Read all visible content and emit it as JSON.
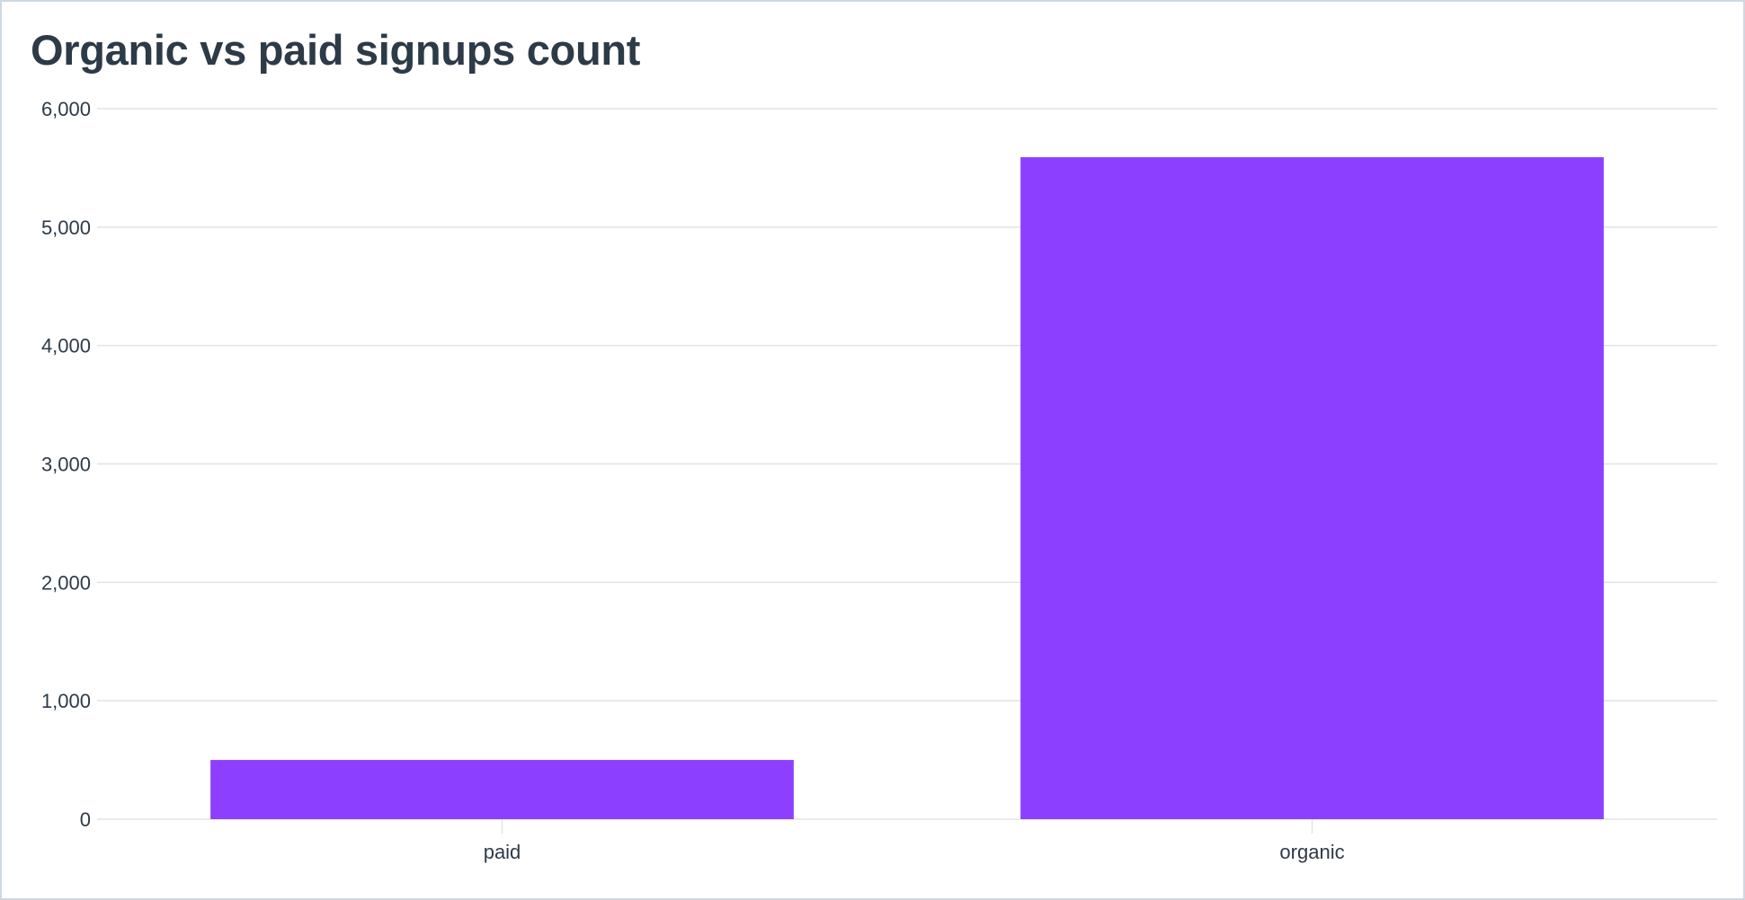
{
  "chart_data": {
    "type": "bar",
    "title": "Organic vs paid signups count",
    "categories": [
      "paid",
      "organic"
    ],
    "values": [
      500,
      5590
    ],
    "ylim": [
      0,
      6000
    ],
    "yticks": [
      0,
      1000,
      2000,
      3000,
      4000,
      5000,
      6000
    ],
    "ytick_labels": [
      "0",
      "1,000",
      "2,000",
      "3,000",
      "4,000",
      "5,000",
      "6,000"
    ],
    "xlabel": "",
    "ylabel": "",
    "grid": true,
    "legend": "none",
    "colors": {
      "bar": "#8c3ffe",
      "grid": "#dfe3e8",
      "text": "#2d3a48",
      "border": "#cfd8e3"
    }
  }
}
